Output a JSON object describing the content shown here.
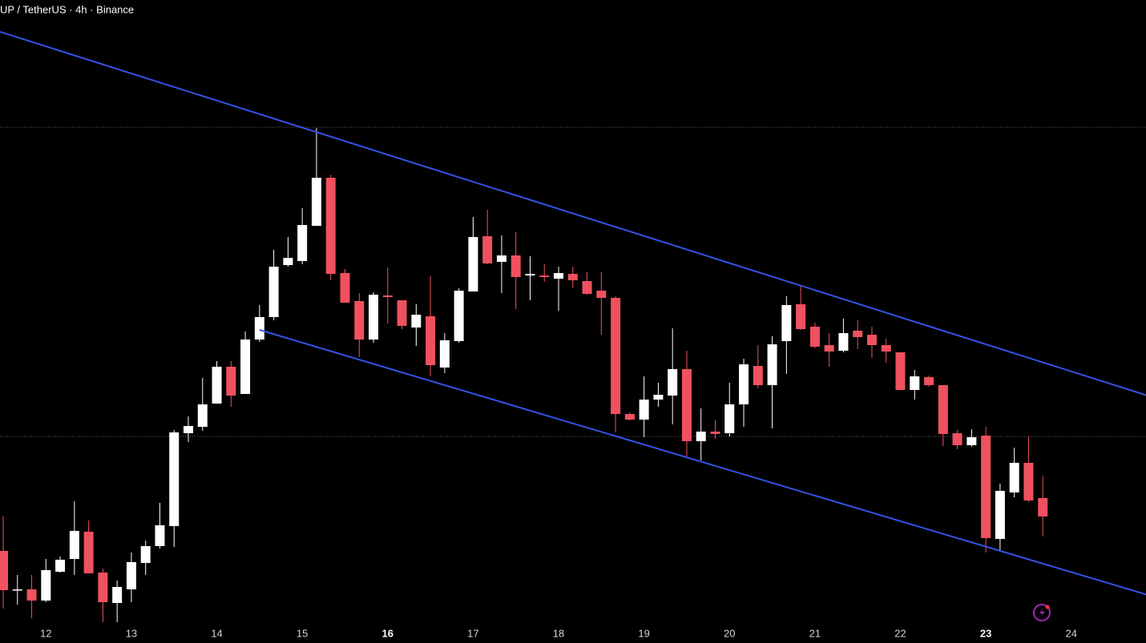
{
  "chart_data": {
    "type": "candlestick",
    "title": "UP / TetherUS · 4h · Binance",
    "categories": [
      null,
      null,
      null,
      "12",
      null,
      null,
      null,
      null,
      null,
      "13",
      null,
      null,
      null,
      null,
      null,
      "14",
      null,
      null,
      null,
      null,
      null,
      "15",
      null,
      null,
      null,
      null,
      null,
      "16",
      null,
      null,
      null,
      null,
      null,
      "17",
      null,
      null,
      null,
      null,
      null,
      "18",
      null,
      null,
      null,
      null,
      null,
      "19",
      null,
      null,
      null,
      null,
      null,
      "20",
      null,
      null,
      null,
      null,
      null,
      "21",
      null,
      null,
      null,
      null,
      null,
      "22",
      null,
      null,
      null,
      null,
      null,
      "23",
      null,
      null,
      null,
      null,
      null,
      "24",
      null,
      null,
      null,
      null,
      null
    ],
    "open": [
      115,
      67,
      67,
      53,
      89,
      105,
      139,
      88,
      50,
      67,
      100,
      121,
      146,
      262,
      270,
      299,
      345,
      311,
      379,
      407,
      472,
      477,
      521,
      581,
      462,
      427,
      379,
      434,
      428,
      394,
      408,
      344,
      377,
      439,
      508,
      476,
      484,
      459,
      459,
      455,
      461,
      452,
      440,
      431,
      286,
      279,
      304,
      309,
      342,
      252,
      264,
      262,
      298,
      346,
      322,
      377,
      423,
      395,
      372,
      365,
      390,
      385,
      372,
      363,
      316,
      332,
      322,
      262,
      247,
      259,
      130,
      188,
      225,
      181,
      null,
      null,
      null,
      null,
      null,
      null,
      null
    ],
    "high": [
      158,
      85,
      85,
      105,
      108,
      177,
      153,
      93,
      78,
      113,
      128,
      175,
      266,
      283,
      331,
      352,
      352,
      389,
      422,
      491,
      507,
      543,
      643,
      585,
      467,
      437,
      438,
      469,
      428,
      423,
      458,
      387,
      443,
      532,
      541,
      509,
      513,
      483,
      473,
      470,
      470,
      463,
      463,
      433,
      288,
      333,
      325,
      393,
      365,
      293,
      278,
      325,
      355,
      372,
      383,
      433,
      446,
      400,
      387,
      405,
      403,
      395,
      380,
      363,
      341,
      334,
      322,
      266,
      267,
      270,
      199,
      244,
      258,
      208,
      null,
      null,
      null,
      null,
      null,
      null,
      null
    ],
    "low": [
      43,
      48,
      31,
      51,
      88,
      85,
      87,
      26,
      26,
      51,
      85,
      118,
      120,
      251,
      265,
      299,
      295,
      311,
      376,
      403,
      470,
      473,
      521,
      453,
      425,
      357,
      375,
      399,
      392,
      371,
      333,
      337,
      375,
      439,
      473,
      437,
      417,
      428,
      451,
      415,
      443,
      435,
      385,
      263,
      278,
      257,
      295,
      273,
      233,
      228,
      255,
      258,
      270,
      318,
      268,
      336,
      391,
      368,
      345,
      363,
      367,
      356,
      350,
      316,
      304,
      320,
      246,
      242,
      245,
      113,
      116,
      182,
      176,
      133,
      null,
      null,
      null,
      null,
      null,
      null,
      null
    ],
    "close": [
      66,
      67,
      53,
      91,
      104,
      140,
      87,
      51,
      70,
      101,
      121,
      147,
      263,
      271,
      298,
      345,
      309,
      379,
      407,
      470,
      481,
      522,
      581,
      461,
      425,
      379,
      435,
      432,
      396,
      410,
      347,
      378,
      440,
      507,
      474,
      484,
      457,
      461,
      457,
      462,
      453,
      436,
      431,
      286,
      279,
      304,
      310,
      342,
      252,
      264,
      261,
      298,
      348,
      322,
      373,
      422,
      392,
      370,
      364,
      387,
      382,
      372,
      364,
      316,
      333,
      322,
      261,
      247,
      257,
      131,
      190,
      225,
      178,
      158,
      null,
      null,
      null,
      null,
      null,
      null,
      null
    ],
    "up_color": "#ffffff",
    "down_color": "#f0515f",
    "ylim": [
      0,
      803
    ],
    "hlines": [
      644,
      258
    ],
    "trendlines": [
      {
        "start": [
          0,
          762
        ],
        "end": [
          80,
          311
        ]
      },
      {
        "start": [
          18,
          391
        ],
        "end": [
          80,
          62
        ]
      }
    ],
    "trendline_color": "#3453e6"
  }
}
